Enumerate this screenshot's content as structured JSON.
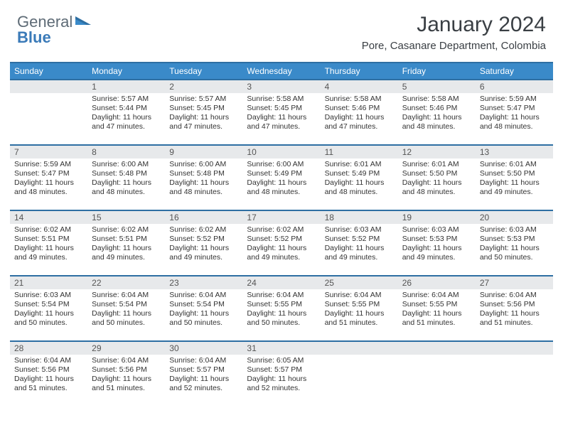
{
  "logo": {
    "part1": "General",
    "part2": "Blue"
  },
  "title": "January 2024",
  "location": "Pore, Casanare Department, Colombia",
  "colors": {
    "headerBlue": "#3a8ac9",
    "borderBlue": "#2e6fa3",
    "dayGrey": "#e7e9eb",
    "logoGrey": "#5e6b76",
    "logoBlue": "#3a7ab8"
  },
  "dayNames": [
    "Sunday",
    "Monday",
    "Tuesday",
    "Wednesday",
    "Thursday",
    "Friday",
    "Saturday"
  ],
  "weeks": [
    [
      null,
      {
        "n": "1",
        "s": "5:57 AM",
        "t": "5:44 PM",
        "d": "11 hours and 47 minutes."
      },
      {
        "n": "2",
        "s": "5:57 AM",
        "t": "5:45 PM",
        "d": "11 hours and 47 minutes."
      },
      {
        "n": "3",
        "s": "5:58 AM",
        "t": "5:45 PM",
        "d": "11 hours and 47 minutes."
      },
      {
        "n": "4",
        "s": "5:58 AM",
        "t": "5:46 PM",
        "d": "11 hours and 47 minutes."
      },
      {
        "n": "5",
        "s": "5:58 AM",
        "t": "5:46 PM",
        "d": "11 hours and 48 minutes."
      },
      {
        "n": "6",
        "s": "5:59 AM",
        "t": "5:47 PM",
        "d": "11 hours and 48 minutes."
      }
    ],
    [
      {
        "n": "7",
        "s": "5:59 AM",
        "t": "5:47 PM",
        "d": "11 hours and 48 minutes."
      },
      {
        "n": "8",
        "s": "6:00 AM",
        "t": "5:48 PM",
        "d": "11 hours and 48 minutes."
      },
      {
        "n": "9",
        "s": "6:00 AM",
        "t": "5:48 PM",
        "d": "11 hours and 48 minutes."
      },
      {
        "n": "10",
        "s": "6:00 AM",
        "t": "5:49 PM",
        "d": "11 hours and 48 minutes."
      },
      {
        "n": "11",
        "s": "6:01 AM",
        "t": "5:49 PM",
        "d": "11 hours and 48 minutes."
      },
      {
        "n": "12",
        "s": "6:01 AM",
        "t": "5:50 PM",
        "d": "11 hours and 48 minutes."
      },
      {
        "n": "13",
        "s": "6:01 AM",
        "t": "5:50 PM",
        "d": "11 hours and 49 minutes."
      }
    ],
    [
      {
        "n": "14",
        "s": "6:02 AM",
        "t": "5:51 PM",
        "d": "11 hours and 49 minutes."
      },
      {
        "n": "15",
        "s": "6:02 AM",
        "t": "5:51 PM",
        "d": "11 hours and 49 minutes."
      },
      {
        "n": "16",
        "s": "6:02 AM",
        "t": "5:52 PM",
        "d": "11 hours and 49 minutes."
      },
      {
        "n": "17",
        "s": "6:02 AM",
        "t": "5:52 PM",
        "d": "11 hours and 49 minutes."
      },
      {
        "n": "18",
        "s": "6:03 AM",
        "t": "5:52 PM",
        "d": "11 hours and 49 minutes."
      },
      {
        "n": "19",
        "s": "6:03 AM",
        "t": "5:53 PM",
        "d": "11 hours and 49 minutes."
      },
      {
        "n": "20",
        "s": "6:03 AM",
        "t": "5:53 PM",
        "d": "11 hours and 50 minutes."
      }
    ],
    [
      {
        "n": "21",
        "s": "6:03 AM",
        "t": "5:54 PM",
        "d": "11 hours and 50 minutes."
      },
      {
        "n": "22",
        "s": "6:04 AM",
        "t": "5:54 PM",
        "d": "11 hours and 50 minutes."
      },
      {
        "n": "23",
        "s": "6:04 AM",
        "t": "5:54 PM",
        "d": "11 hours and 50 minutes."
      },
      {
        "n": "24",
        "s": "6:04 AM",
        "t": "5:55 PM",
        "d": "11 hours and 50 minutes."
      },
      {
        "n": "25",
        "s": "6:04 AM",
        "t": "5:55 PM",
        "d": "11 hours and 51 minutes."
      },
      {
        "n": "26",
        "s": "6:04 AM",
        "t": "5:55 PM",
        "d": "11 hours and 51 minutes."
      },
      {
        "n": "27",
        "s": "6:04 AM",
        "t": "5:56 PM",
        "d": "11 hours and 51 minutes."
      }
    ],
    [
      {
        "n": "28",
        "s": "6:04 AM",
        "t": "5:56 PM",
        "d": "11 hours and 51 minutes."
      },
      {
        "n": "29",
        "s": "6:04 AM",
        "t": "5:56 PM",
        "d": "11 hours and 51 minutes."
      },
      {
        "n": "30",
        "s": "6:04 AM",
        "t": "5:57 PM",
        "d": "11 hours and 52 minutes."
      },
      {
        "n": "31",
        "s": "6:05 AM",
        "t": "5:57 PM",
        "d": "11 hours and 52 minutes."
      },
      null,
      null,
      null
    ]
  ],
  "labels": {
    "sunrise": "Sunrise:",
    "sunset": "Sunset:",
    "daylight": "Daylight:"
  }
}
